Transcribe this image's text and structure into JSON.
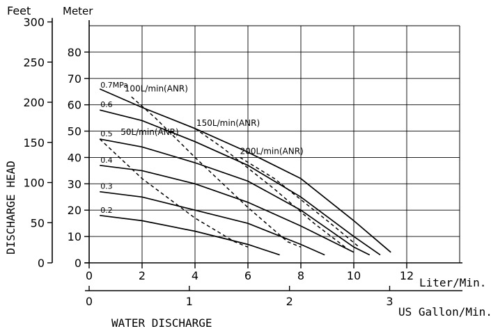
{
  "chart_data": {
    "type": "line",
    "ylabel": "DISCHARGE HEAD",
    "xlabel": "WATER DISCHARGE",
    "ylabel_left_unit": "Feet",
    "ylabel_right_unit": "Meter",
    "x_primary_unit": "Liter/Min.",
    "x_secondary_unit": "US Gallon/Min.",
    "x_primary_ticks": [
      "0",
      "2",
      "4",
      "6",
      "8",
      "10",
      "12"
    ],
    "x_secondary_ticks": [
      "0",
      "1",
      "2",
      "3"
    ],
    "y_feet_ticks": [
      "0",
      "50",
      "100",
      "150",
      "200",
      "250",
      "300"
    ],
    "y_meter_ticks": [
      "0",
      "10",
      "20",
      "30",
      "40",
      "50",
      "60",
      "70",
      "80"
    ],
    "xlim": [
      0,
      14
    ],
    "ylim_meter": [
      0,
      90
    ],
    "grid": true,
    "pressure_series": [
      {
        "name": "0.7MPa",
        "points": [
          [
            0.4,
            66
          ],
          [
            2,
            59
          ],
          [
            4,
            51
          ],
          [
            6,
            42
          ],
          [
            8,
            32
          ],
          [
            10,
            16
          ],
          [
            11.4,
            4
          ]
        ]
      },
      {
        "name": "0.6",
        "points": [
          [
            0.4,
            58
          ],
          [
            2,
            54
          ],
          [
            4,
            46
          ],
          [
            6,
            37
          ],
          [
            8,
            25
          ],
          [
            10,
            10
          ],
          [
            11.0,
            3
          ]
        ]
      },
      {
        "name": "0.5",
        "points": [
          [
            0.4,
            47
          ],
          [
            2,
            44
          ],
          [
            4,
            38
          ],
          [
            6,
            31
          ],
          [
            8,
            20
          ],
          [
            10,
            6
          ],
          [
            10.6,
            3
          ]
        ]
      },
      {
        "name": "0.4",
        "points": [
          [
            0.4,
            37
          ],
          [
            2,
            35
          ],
          [
            4,
            30
          ],
          [
            6,
            23
          ],
          [
            8,
            14
          ],
          [
            10,
            4
          ]
        ]
      },
      {
        "name": "0.3",
        "points": [
          [
            0.4,
            27
          ],
          [
            2,
            25
          ],
          [
            4,
            20
          ],
          [
            6,
            15
          ],
          [
            8,
            7
          ],
          [
            8.9,
            3
          ]
        ]
      },
      {
        "name": "0.2",
        "points": [
          [
            0.4,
            18
          ],
          [
            2,
            16
          ],
          [
            4,
            12
          ],
          [
            6,
            7
          ],
          [
            7.2,
            3
          ]
        ]
      }
    ],
    "airflow_series": [
      {
        "name": "50L/min(ANR)",
        "points": [
          [
            0.4,
            47
          ],
          [
            2,
            32
          ],
          [
            4,
            17
          ],
          [
            5.5,
            8
          ],
          [
            6.0,
            6
          ]
        ]
      },
      {
        "name": "100L/min(ANR)",
        "points": [
          [
            1.6,
            63
          ],
          [
            2.5,
            55
          ],
          [
            4,
            40
          ],
          [
            6,
            21
          ],
          [
            7.5,
            8
          ],
          [
            8.0,
            6
          ]
        ]
      },
      {
        "name": "150L/min(ANR)",
        "points": [
          [
            4.0,
            51
          ],
          [
            5,
            44
          ],
          [
            6,
            36
          ],
          [
            7,
            28
          ],
          [
            8.5,
            15
          ],
          [
            9.8,
            5
          ]
        ]
      },
      {
        "name": "200L/min(ANR)",
        "points": [
          [
            5.7,
            40
          ],
          [
            7,
            32
          ],
          [
            8,
            24
          ],
          [
            9,
            16
          ],
          [
            10.2,
            6
          ]
        ]
      }
    ]
  }
}
